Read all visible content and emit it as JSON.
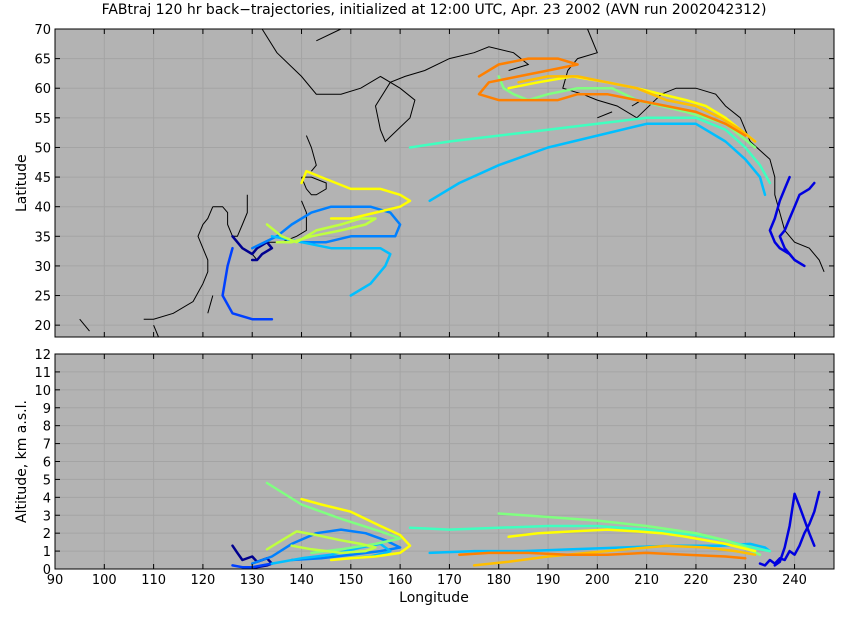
{
  "title": "FABtraj 120 hr back−trajectories, initialized at 12:00 UTC, Apr. 23 2002 (AVN run 2002042312)",
  "xlabel": "Longitude",
  "chart_data": [
    {
      "type": "line",
      "panel": "map",
      "ylabel": "Latitude",
      "xlim": [
        90,
        248
      ],
      "ylim": [
        18,
        70
      ],
      "xticks": [
        90,
        100,
        110,
        120,
        130,
        140,
        150,
        160,
        170,
        180,
        190,
        200,
        210,
        220,
        230,
        240
      ],
      "yticks": [
        20,
        25,
        30,
        35,
        40,
        45,
        50,
        55,
        60,
        65,
        70
      ],
      "grid": true,
      "background": "#b3b3b3",
      "coastline_color": "#000000",
      "series": [
        {
          "color": "#00008f",
          "x": [
            128,
            127,
            126,
            127,
            128,
            130,
            131,
            133,
            134,
            132,
            131,
            130
          ],
          "y": [
            33,
            34,
            35,
            34,
            33,
            32,
            33,
            34,
            33,
            32,
            31,
            31
          ]
        },
        {
          "color": "#0000df",
          "x": [
            244,
            243,
            241,
            240,
            239,
            238,
            237,
            238,
            239,
            240,
            242
          ],
          "y": [
            44,
            43,
            42,
            40,
            38,
            36,
            35,
            33,
            32,
            31,
            30
          ]
        },
        {
          "color": "#0000df",
          "x": [
            239,
            238,
            237,
            236,
            235,
            236,
            237,
            239,
            240
          ],
          "y": [
            45,
            43,
            41,
            38,
            36,
            34,
            33,
            32,
            31
          ]
        },
        {
          "color": "#0040ff",
          "x": [
            126,
            125,
            124,
            126,
            130,
            134
          ],
          "y": [
            33,
            30,
            25,
            22,
            21,
            21
          ]
        },
        {
          "color": "#0080ff",
          "x": [
            130,
            135,
            138,
            142,
            146,
            150,
            154,
            158,
            160,
            159,
            155,
            150,
            145,
            140
          ],
          "y": [
            33,
            35,
            37,
            39,
            40,
            40,
            40,
            39,
            37,
            35,
            35,
            35,
            34,
            34
          ]
        },
        {
          "color": "#00bfff",
          "x": [
            166,
            172,
            180,
            190,
            200,
            210,
            220,
            226,
            230,
            233,
            234
          ],
          "y": [
            41,
            44,
            47,
            50,
            52,
            54,
            54,
            51,
            48,
            45,
            42
          ]
        },
        {
          "color": "#00bfff",
          "x": [
            134,
            140,
            146,
            152,
            156,
            158,
            157,
            154,
            150
          ],
          "y": [
            35,
            34,
            33,
            33,
            33,
            32,
            30,
            27,
            25
          ]
        },
        {
          "color": "#40ffbf",
          "x": [
            162,
            170,
            180,
            190,
            200,
            210,
            220,
            226,
            230,
            233,
            235
          ],
          "y": [
            50,
            51,
            52,
            53,
            54,
            55,
            55,
            53,
            50,
            47,
            44
          ]
        },
        {
          "color": "#80ff80",
          "x": [
            180,
            181,
            183,
            186,
            190,
            196,
            203,
            208,
            213,
            218,
            222,
            226,
            229,
            232
          ],
          "y": [
            62,
            60,
            59,
            58,
            59,
            60,
            60,
            58,
            57,
            56,
            55,
            54,
            52,
            50
          ]
        },
        {
          "color": "#bfff40",
          "x": [
            133,
            136,
            139,
            143,
            148,
            152,
            155,
            153,
            148,
            142,
            138,
            135
          ],
          "y": [
            37,
            35,
            34,
            36,
            37,
            38,
            38,
            37,
            36,
            35,
            34,
            34
          ]
        },
        {
          "color": "#ffff00",
          "x": [
            140,
            141,
            144,
            150,
            156,
            160,
            162,
            160,
            155,
            150,
            146
          ],
          "y": [
            44,
            46,
            45,
            43,
            43,
            42,
            41,
            40,
            39,
            38,
            38
          ]
        },
        {
          "color": "#ffff00",
          "x": [
            182,
            188,
            195,
            202,
            208,
            213,
            218,
            222,
            226,
            229,
            232
          ],
          "y": [
            60,
            61,
            62,
            61,
            60,
            59,
            58,
            57,
            55,
            53,
            51
          ]
        },
        {
          "color": "#ffbf00",
          "x": [
            184,
            190,
            196,
            202,
            208,
            214,
            220,
            225,
            229,
            232
          ],
          "y": [
            61,
            62,
            62,
            61,
            60,
            58,
            57,
            55,
            53,
            51
          ]
        },
        {
          "color": "#ff8000",
          "x": [
            176,
            180,
            186,
            192,
            196,
            190,
            184,
            178,
            176,
            180,
            186,
            192,
            196,
            202,
            208,
            214,
            220,
            226,
            230
          ],
          "y": [
            62,
            64,
            65,
            65,
            64,
            63,
            62,
            61,
            59,
            58,
            58,
            58,
            59,
            59,
            58,
            57,
            56,
            54,
            52
          ]
        }
      ]
    },
    {
      "type": "line",
      "panel": "altitude",
      "ylabel": "Altitude, km a.s.l.",
      "xlim": [
        90,
        248
      ],
      "ylim": [
        0,
        12
      ],
      "xticks": [
        90,
        100,
        110,
        120,
        130,
        140,
        150,
        160,
        170,
        180,
        190,
        200,
        210,
        220,
        230,
        240
      ],
      "yticks": [
        0,
        1,
        2,
        3,
        4,
        5,
        6,
        7,
        8,
        9,
        10,
        11,
        12
      ],
      "grid": true,
      "background": "#b3b3b3",
      "series": [
        {
          "color": "#00008f",
          "x": [
            126,
            127,
            128,
            130,
            131,
            133,
            134,
            133,
            131,
            130
          ],
          "y": [
            1.3,
            0.9,
            0.5,
            0.7,
            0.4,
            0.6,
            0.3,
            0.2,
            0.1,
            0.1
          ]
        },
        {
          "color": "#0000df",
          "x": [
            245,
            244,
            243,
            242,
            241,
            240,
            239,
            238,
            237,
            236,
            235,
            234,
            233
          ],
          "y": [
            4.3,
            3.2,
            2.5,
            2.0,
            1.3,
            0.8,
            1.0,
            0.5,
            0.6,
            0.3,
            0.5,
            0.2,
            0.3
          ]
        },
        {
          "color": "#0000df",
          "x": [
            244,
            243,
            241,
            240,
            239,
            238,
            237,
            236
          ],
          "y": [
            1.3,
            2.0,
            3.5,
            4.2,
            2.4,
            1.2,
            0.4,
            0.2
          ]
        },
        {
          "color": "#0040ff",
          "x": [
            126,
            128,
            130,
            132,
            134
          ],
          "y": [
            0.2,
            0.1,
            0.1,
            0.2,
            0.3
          ]
        },
        {
          "color": "#0080ff",
          "x": [
            130,
            134,
            138,
            143,
            148,
            153,
            157,
            160,
            156,
            150,
            144,
            138
          ],
          "y": [
            0.3,
            0.7,
            1.4,
            2.0,
            2.2,
            2.0,
            1.6,
            1.2,
            1.0,
            0.8,
            0.6,
            0.5
          ]
        },
        {
          "color": "#00bfff",
          "x": [
            166,
            175,
            185,
            195,
            205,
            215,
            225,
            231,
            234,
            235
          ],
          "y": [
            0.9,
            1.0,
            1.0,
            1.1,
            1.2,
            1.3,
            1.3,
            1.4,
            1.2,
            1.0
          ]
        },
        {
          "color": "#00bfff",
          "x": [
            134,
            140,
            146,
            152,
            156,
            158,
            157,
            154,
            150
          ],
          "y": [
            0.3,
            0.6,
            0.8,
            1.2,
            1.4,
            1.0,
            0.9,
            0.7,
            0.6
          ]
        },
        {
          "color": "#40ffbf",
          "x": [
            162,
            170,
            180,
            190,
            200,
            210,
            220,
            226,
            230,
            233,
            235
          ],
          "y": [
            2.3,
            2.2,
            2.3,
            2.4,
            2.4,
            2.2,
            1.9,
            1.6,
            1.3,
            1.1,
            1.0
          ]
        },
        {
          "color": "#80ff80",
          "x": [
            133,
            140,
            148,
            156,
            160,
            155,
            148,
            142
          ],
          "y": [
            4.8,
            3.6,
            2.8,
            2.1,
            1.7,
            1.4,
            1.1,
            0.9
          ]
        },
        {
          "color": "#80ff80",
          "x": [
            180,
            190,
            200,
            210,
            220,
            226,
            230,
            233
          ],
          "y": [
            3.1,
            2.9,
            2.7,
            2.4,
            2.0,
            1.6,
            1.2,
            0.8
          ]
        },
        {
          "color": "#bfff40",
          "x": [
            133,
            136,
            139,
            143,
            148,
            152,
            155,
            153,
            148,
            142,
            138
          ],
          "y": [
            1.1,
            1.6,
            2.1,
            1.9,
            1.6,
            1.4,
            1.2,
            1.0,
            0.9,
            1.1,
            1.3
          ]
        },
        {
          "color": "#ffff00",
          "x": [
            140,
            144,
            150,
            156,
            160,
            162,
            160,
            155,
            150,
            146
          ],
          "y": [
            3.9,
            3.6,
            3.2,
            2.4,
            1.9,
            1.3,
            0.9,
            0.7,
            0.6,
            0.5
          ]
        },
        {
          "color": "#ffff00",
          "x": [
            182,
            188,
            195,
            202,
            208,
            213,
            218,
            222,
            226,
            229,
            232
          ],
          "y": [
            1.8,
            2.0,
            2.1,
            2.2,
            2.1,
            2.0,
            1.8,
            1.6,
            1.4,
            1.2,
            1.0
          ]
        },
        {
          "color": "#ffbf00",
          "x": [
            175,
            182,
            190,
            198,
            206,
            214,
            222,
            228,
            232
          ],
          "y": [
            0.2,
            0.4,
            0.7,
            0.9,
            1.1,
            1.3,
            1.2,
            1.0,
            0.8
          ]
        },
        {
          "color": "#ff8000",
          "x": [
            172,
            178,
            186,
            194,
            202,
            210,
            218,
            226,
            230
          ],
          "y": [
            0.8,
            0.9,
            0.9,
            0.8,
            0.8,
            0.9,
            0.8,
            0.7,
            0.6
          ]
        }
      ]
    }
  ]
}
